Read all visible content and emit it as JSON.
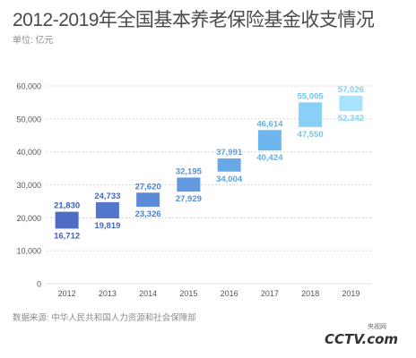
{
  "title": "2012-2019年全国基本养老保险基金收支情况",
  "unit_label": "单位: 亿元",
  "source": "数据来源: 中华人民共和国人力资源和社会保障部",
  "logo": {
    "wordmark": "CCTV.com",
    "site": "央视网"
  },
  "colors": {
    "grid": "#d0d0d0",
    "axis_text": "#555555",
    "bar_colors": [
      "#4f6cc4",
      "#5476cc",
      "#5b8ad6",
      "#6298de",
      "#67a8e6",
      "#6eb6ee",
      "#8ad0f6",
      "#a8e4fb"
    ],
    "label_colors": [
      "#3f5dbb",
      "#4267c4",
      "#4b7cd0",
      "#5290d8",
      "#5aa2df",
      "#62b2e8",
      "#72c6f0",
      "#80d2f4"
    ]
  },
  "chart_data": {
    "type": "bar",
    "subtype": "floating-range",
    "categories": [
      "2012",
      "2013",
      "2014",
      "2015",
      "2016",
      "2017",
      "2018",
      "2019"
    ],
    "series": [
      {
        "values": [
          21830,
          24733,
          27620,
          32195,
          37991,
          46614,
          55005,
          57026
        ]
      },
      {
        "values": [
          16712,
          19819,
          23326,
          27929,
          34004,
          40424,
          47550,
          52342
        ]
      }
    ],
    "top_labels": [
      "21,830",
      "24,733",
      "27,620",
      "32,195",
      "37,991",
      "46,614",
      "55,005",
      "57,026"
    ],
    "bottom_labels": [
      "16,712",
      "19,819",
      "23,326",
      "27,929",
      "34,004",
      "40,424",
      "47,550",
      "52,342"
    ],
    "y_ticks": [
      0,
      10000,
      20000,
      30000,
      40000,
      50000,
      60000
    ],
    "y_tick_labels": [
      "0",
      "10,000",
      "20,000",
      "30,000",
      "40,000",
      "50,000",
      "60,000"
    ],
    "ylim": [
      0,
      60000
    ],
    "grid": true,
    "legend": "none"
  }
}
